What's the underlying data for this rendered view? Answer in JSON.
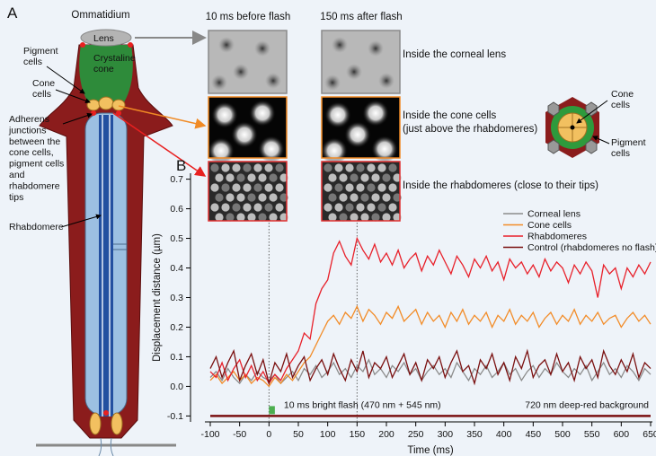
{
  "panel_a": {
    "label": "A",
    "title": "Ommatidium",
    "lens": "Lens",
    "pigment_cells": [
      "Pigment",
      "cells"
    ],
    "crystaline_cone": [
      "Crystaline",
      "cone"
    ],
    "cone_cells": [
      "Cone",
      "cells"
    ],
    "adherens": [
      "Adherens",
      "junctions",
      "between the",
      "cone cells,",
      "pigment cells",
      "and",
      "rhabdomere",
      "tips"
    ],
    "rhabdomere": "Rhabdomere"
  },
  "images": {
    "columns": [
      "10 ms before flash",
      "150 ms after flash"
    ],
    "rows": [
      [
        "Inside the corneal lens"
      ],
      [
        "Inside the cone cells",
        "(just above the rhabdomeres)"
      ],
      [
        "Inside the rhabdomeres (close to their tips)"
      ]
    ],
    "cross_section": {
      "cone_cells": [
        "Cone",
        "cells"
      ],
      "pigment_cells": [
        "Pigment",
        "cells"
      ]
    }
  },
  "chart_data": {
    "type": "line",
    "panel_label": "B",
    "y_label": "Displacement distance (µm)",
    "x_label": "Time (ms)",
    "x": [
      -100,
      -90,
      -80,
      -70,
      -60,
      -50,
      -40,
      -30,
      -20,
      -10,
      0,
      10,
      20,
      30,
      40,
      50,
      60,
      70,
      80,
      90,
      100,
      110,
      120,
      130,
      140,
      150,
      160,
      170,
      180,
      190,
      200,
      210,
      220,
      230,
      240,
      250,
      260,
      270,
      280,
      290,
      300,
      310,
      320,
      330,
      340,
      350,
      360,
      370,
      380,
      390,
      400,
      410,
      420,
      430,
      440,
      450,
      460,
      470,
      480,
      490,
      500,
      510,
      520,
      530,
      540,
      550,
      560,
      570,
      580,
      590,
      600,
      610,
      620,
      630,
      640,
      650
    ],
    "series": [
      {
        "name": "Corneal lens",
        "color": "#8c8c8c",
        "values": [
          0.03,
          0.05,
          0.02,
          0.06,
          0.03,
          0.01,
          0.04,
          0.02,
          0.05,
          0.03,
          0.02,
          0.04,
          0.01,
          0.03,
          0.05,
          0.02,
          0.06,
          0.04,
          0.07,
          0.03,
          0.05,
          0.08,
          0.04,
          0.06,
          0.03,
          0.07,
          0.05,
          0.09,
          0.04,
          0.06,
          0.03,
          0.07,
          0.05,
          0.08,
          0.04,
          0.06,
          0.02,
          0.05,
          0.07,
          0.04,
          0.06,
          0.03,
          0.08,
          0.05,
          0.02,
          0.06,
          0.04,
          0.07,
          0.03,
          0.05,
          0.08,
          0.04,
          0.06,
          0.02,
          0.05,
          0.07,
          0.03,
          0.06,
          0.04,
          0.08,
          0.05,
          0.03,
          0.06,
          0.04,
          0.07,
          0.02,
          0.05,
          0.08,
          0.04,
          0.06,
          0.03,
          0.07,
          0.05,
          0.02,
          0.06,
          0.04
        ]
      },
      {
        "name": "Cone cells",
        "color": "#f28c28",
        "values": [
          0.02,
          0.04,
          0.01,
          0.03,
          0.05,
          0.02,
          0.04,
          0.01,
          0.03,
          0.02,
          0.0,
          0.03,
          0.01,
          0.04,
          0.02,
          0.05,
          0.08,
          0.1,
          0.14,
          0.18,
          0.22,
          0.24,
          0.21,
          0.25,
          0.23,
          0.27,
          0.22,
          0.26,
          0.24,
          0.21,
          0.25,
          0.23,
          0.27,
          0.22,
          0.24,
          0.26,
          0.21,
          0.25,
          0.22,
          0.24,
          0.2,
          0.25,
          0.22,
          0.26,
          0.21,
          0.24,
          0.22,
          0.25,
          0.2,
          0.24,
          0.22,
          0.26,
          0.21,
          0.24,
          0.22,
          0.25,
          0.2,
          0.23,
          0.25,
          0.21,
          0.24,
          0.22,
          0.26,
          0.21,
          0.24,
          0.22,
          0.25,
          0.21,
          0.23,
          0.24,
          0.2,
          0.23,
          0.25,
          0.22,
          0.24,
          0.21
        ]
      },
      {
        "name": "Rhabdomeres",
        "color": "#e8202a",
        "values": [
          0.05,
          0.03,
          0.08,
          0.02,
          0.06,
          0.09,
          0.03,
          0.07,
          0.02,
          0.05,
          0.01,
          0.04,
          0.02,
          0.06,
          0.09,
          0.12,
          0.18,
          0.16,
          0.28,
          0.33,
          0.36,
          0.45,
          0.49,
          0.44,
          0.41,
          0.5,
          0.46,
          0.43,
          0.48,
          0.42,
          0.45,
          0.41,
          0.46,
          0.4,
          0.43,
          0.45,
          0.39,
          0.44,
          0.41,
          0.46,
          0.42,
          0.38,
          0.44,
          0.41,
          0.37,
          0.43,
          0.4,
          0.44,
          0.39,
          0.42,
          0.36,
          0.43,
          0.4,
          0.42,
          0.38,
          0.41,
          0.37,
          0.43,
          0.39,
          0.42,
          0.4,
          0.35,
          0.41,
          0.38,
          0.42,
          0.39,
          0.3,
          0.41,
          0.38,
          0.4,
          0.33,
          0.4,
          0.37,
          0.41,
          0.38,
          0.42
        ]
      },
      {
        "name": "Control (rhabdomeres no flash)",
        "color": "#7a1010",
        "values": [
          0.06,
          0.1,
          0.03,
          0.08,
          0.12,
          0.02,
          0.07,
          0.11,
          0.04,
          0.09,
          0.01,
          0.08,
          0.05,
          0.11,
          0.03,
          0.07,
          0.1,
          0.02,
          0.06,
          0.09,
          0.04,
          0.11,
          0.06,
          0.02,
          0.09,
          0.05,
          0.12,
          0.03,
          0.08,
          0.06,
          0.1,
          0.03,
          0.07,
          0.11,
          0.04,
          0.08,
          0.02,
          0.09,
          0.06,
          0.1,
          0.03,
          0.08,
          0.12,
          0.05,
          0.07,
          0.01,
          0.09,
          0.06,
          0.11,
          0.04,
          0.08,
          0.02,
          0.1,
          0.06,
          0.12,
          0.03,
          0.07,
          0.09,
          0.04,
          0.11,
          0.05,
          0.08,
          0.02,
          0.1,
          0.06,
          0.09,
          0.03,
          0.12,
          0.07,
          0.04,
          0.09,
          0.05,
          0.11,
          0.03,
          0.08,
          0.06
        ]
      }
    ],
    "xlim": [
      -100,
      650
    ],
    "ylim": [
      -0.12,
      0.72
    ],
    "xticks": [
      -100,
      -50,
      0,
      50,
      100,
      150,
      200,
      250,
      300,
      350,
      400,
      450,
      500,
      550,
      600,
      650
    ],
    "yticks": [
      -0.1,
      {
        "value": 0,
        "label": "0.0"
      },
      0.1,
      0.2,
      0.3,
      0.4,
      0.5,
      0.6,
      0.7
    ],
    "legend": "upper right",
    "vlines": [
      0,
      150
    ],
    "flash": {
      "label": "10 ms bright flash (470 nm + 545 nm)",
      "range": [
        0,
        10
      ],
      "color": "#4caf50"
    },
    "background": {
      "label": "720 nm deep-red background",
      "level": -0.1,
      "color": "#7a1010"
    }
  }
}
